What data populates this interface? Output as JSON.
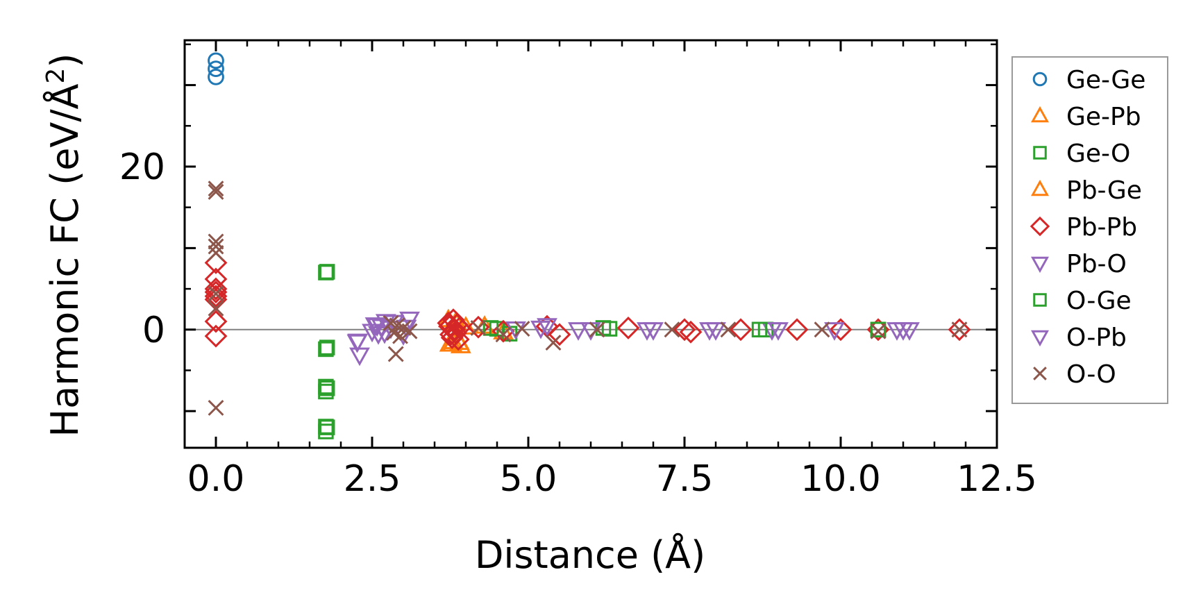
{
  "chart_data": {
    "type": "scatter",
    "xlabel": "Distance (Å)",
    "ylabel": "Harmonic FC (eV/Å²)",
    "ylabel_base": "Harmonic FC (eV/Å",
    "ylabel_sup": "2",
    "ylabel_tail": ")",
    "xlim": [
      -0.5,
      12.5
    ],
    "ylim": [
      -14.5,
      35.5
    ],
    "x_ticks": [
      0.0,
      2.5,
      5.0,
      7.5,
      10.0,
      12.5
    ],
    "x_tick_labels": [
      "0.0",
      "2.5",
      "5.0",
      "7.5",
      "10.0",
      "12.5"
    ],
    "y_ticks": [
      0,
      20
    ],
    "y_tick_labels": [
      "0",
      "20"
    ],
    "zero_line": true,
    "grid": false,
    "legend_position": "outside-right",
    "series": [
      {
        "name": "Ge-Ge",
        "marker": "circle",
        "color": "#1f77b4",
        "points": [
          [
            0,
            33
          ],
          [
            0,
            32
          ],
          [
            0,
            31
          ]
        ]
      },
      {
        "name": "Ge-Pb",
        "marker": "triangle-up",
        "color": "#ff7f0e",
        "points": [
          [
            3.74,
            -1.8
          ],
          [
            3.8,
            -1.5
          ],
          [
            3.86,
            0.8
          ],
          [
            3.92,
            -2.0
          ],
          [
            4.3,
            0.4
          ],
          [
            4.6,
            -0.3
          ]
        ]
      },
      {
        "name": "Ge-O",
        "marker": "square",
        "color": "#2ca02c",
        "points": [
          [
            1.76,
            7.0
          ],
          [
            1.76,
            -2.4
          ],
          [
            1.76,
            -7.0
          ],
          [
            1.76,
            -7.6
          ],
          [
            1.76,
            -11.9
          ],
          [
            1.76,
            -12.5
          ],
          [
            4.5,
            0.1
          ],
          [
            4.7,
            -0.5
          ],
          [
            6.2,
            0.2
          ],
          [
            8.8,
            0
          ],
          [
            10.6,
            0
          ]
        ]
      },
      {
        "name": "Pb-Ge",
        "marker": "triangle-up",
        "color": "#ff7f0e",
        "points": [
          [
            3.72,
            1.2
          ],
          [
            3.78,
            -1.8
          ],
          [
            3.84,
            0.9
          ],
          [
            3.9,
            -1.6
          ],
          [
            4.0,
            0.3
          ]
        ]
      },
      {
        "name": "Pb-Pb",
        "marker": "diamond",
        "color": "#d62728",
        "points": [
          [
            0,
            8.2
          ],
          [
            0,
            6.2
          ],
          [
            0,
            5.0
          ],
          [
            0,
            4.6
          ],
          [
            0,
            4.1
          ],
          [
            0,
            3.7
          ],
          [
            0,
            1.0
          ],
          [
            0,
            -0.8
          ],
          [
            3.72,
            0.8
          ],
          [
            3.74,
            0.4
          ],
          [
            3.76,
            -0.6
          ],
          [
            3.78,
            -1.0
          ],
          [
            3.8,
            1.2
          ],
          [
            3.82,
            0.0
          ],
          [
            3.84,
            -0.4
          ],
          [
            3.86,
            0.6
          ],
          [
            3.88,
            -1.2
          ],
          [
            3.9,
            0.2
          ],
          [
            4.2,
            0.3
          ],
          [
            4.6,
            -0.2
          ],
          [
            5.3,
            0.4
          ],
          [
            5.5,
            -0.6
          ],
          [
            6.6,
            0.2
          ],
          [
            7.5,
            0
          ],
          [
            7.6,
            -0.3
          ],
          [
            8.4,
            0
          ],
          [
            9.3,
            0
          ],
          [
            10.0,
            0
          ],
          [
            10.6,
            0
          ],
          [
            11.9,
            0
          ]
        ]
      },
      {
        "name": "Pb-O",
        "marker": "triangle-down",
        "color": "#9467bd",
        "points": [
          [
            2.26,
            -1.5
          ],
          [
            2.3,
            -3.1
          ],
          [
            2.5,
            -0.2
          ],
          [
            2.55,
            0.6
          ],
          [
            2.6,
            -0.5
          ],
          [
            2.65,
            0.4
          ],
          [
            2.72,
            1.0
          ],
          [
            2.8,
            0.2
          ],
          [
            3.0,
            -0.6
          ],
          [
            3.1,
            1.3
          ],
          [
            4.8,
            0.1
          ],
          [
            5.3,
            0.5
          ],
          [
            5.8,
            0
          ],
          [
            6.9,
            0
          ],
          [
            7.9,
            0
          ],
          [
            8.9,
            0
          ],
          [
            9.9,
            0
          ],
          [
            10.9,
            0
          ],
          [
            11.1,
            0
          ]
        ]
      },
      {
        "name": "O-Ge",
        "marker": "square",
        "color": "#2ca02c",
        "points": [
          [
            1.78,
            7.1
          ],
          [
            1.78,
            -2.2
          ],
          [
            1.78,
            -7.2
          ],
          [
            1.78,
            -12.0
          ],
          [
            4.4,
            0.2
          ],
          [
            6.3,
            0.1
          ],
          [
            8.7,
            0
          ],
          [
            10.6,
            0
          ]
        ]
      },
      {
        "name": "O-Pb",
        "marker": "triangle-down",
        "color": "#9467bd",
        "points": [
          [
            2.27,
            -1.4
          ],
          [
            2.58,
            0.5
          ],
          [
            2.7,
            -0.4
          ],
          [
            2.85,
            0.9
          ],
          [
            3.05,
            0.3
          ],
          [
            5.2,
            0.2
          ],
          [
            6.0,
            0
          ],
          [
            7.0,
            0
          ],
          [
            8.0,
            0
          ],
          [
            9.0,
            0
          ],
          [
            11.0,
            0
          ]
        ]
      },
      {
        "name": "O-O",
        "marker": "x",
        "color": "#8c564b",
        "points": [
          [
            0,
            17.3
          ],
          [
            0,
            16.9
          ],
          [
            0,
            10.8
          ],
          [
            0,
            10.2
          ],
          [
            0,
            9.4
          ],
          [
            0,
            4.4
          ],
          [
            0,
            2.6
          ],
          [
            0,
            -9.6
          ],
          [
            2.8,
            0.8
          ],
          [
            2.85,
            -0.4
          ],
          [
            2.9,
            0.5
          ],
          [
            2.95,
            -0.8
          ],
          [
            3.0,
            0.2
          ],
          [
            2.88,
            -3.0
          ],
          [
            3.1,
            -0.2
          ],
          [
            4.2,
            0.2
          ],
          [
            4.6,
            -0.6
          ],
          [
            4.9,
            0.1
          ],
          [
            5.4,
            -1.6
          ],
          [
            6.1,
            0
          ],
          [
            7.3,
            0
          ],
          [
            8.2,
            0
          ],
          [
            9.7,
            0
          ],
          [
            10.6,
            -0.2
          ],
          [
            11.9,
            0
          ]
        ]
      }
    ]
  }
}
